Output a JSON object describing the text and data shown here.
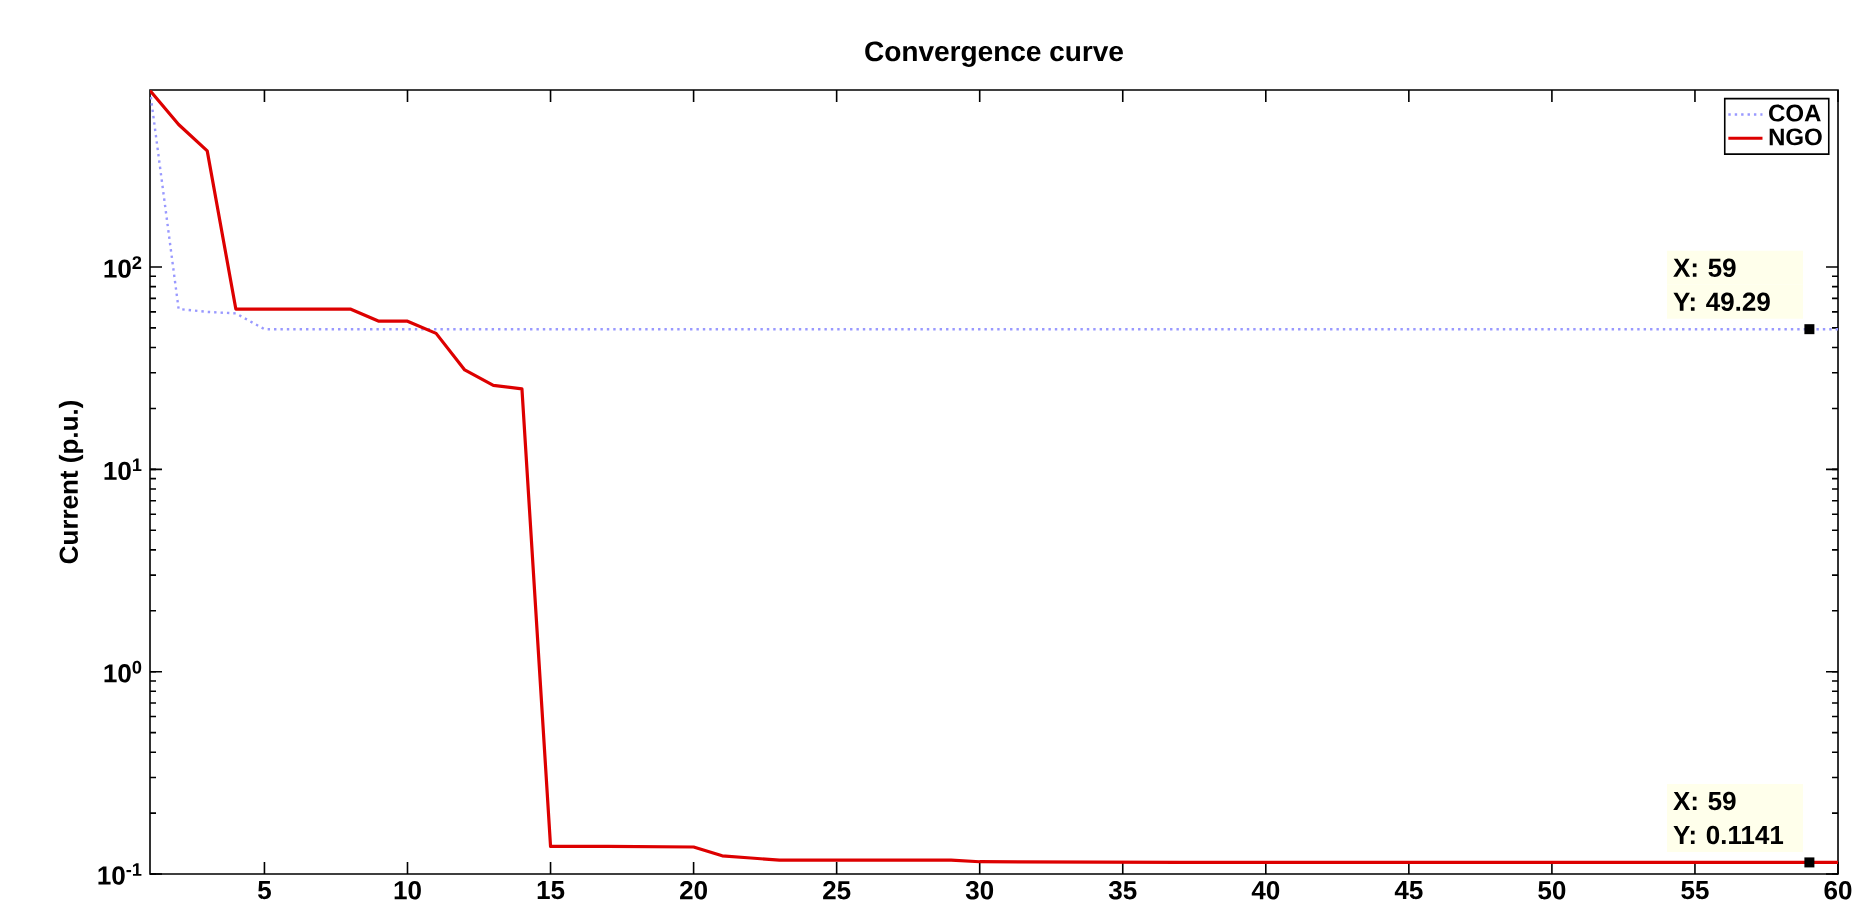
{
  "chart_data": {
    "type": "line",
    "title": "Convergence curve",
    "ylabel": "Current (p.u.)",
    "xlim": [
      1,
      60
    ],
    "xticks": [
      5,
      10,
      15,
      20,
      25,
      30,
      35,
      40,
      45,
      50,
      55,
      60
    ],
    "ylim": [
      0.1,
      750
    ],
    "log": "y",
    "yticks": [
      {
        "value": 0.1,
        "label": "10$^{-1}$"
      },
      {
        "value": 1,
        "label": "10$^{0}$"
      },
      {
        "value": 10,
        "label": "10$^{1}$"
      },
      {
        "value": 100,
        "label": "10$^{2}$"
      }
    ],
    "legend": "top right",
    "marker": "none",
    "grid": false,
    "series": [
      {
        "name": "COA",
        "color": "#9999ff",
        "line_style": "dotted",
        "x": [
          1,
          2,
          3,
          4,
          5,
          60
        ],
        "values": [
          745,
          62,
          60,
          59,
          49.29,
          49.29
        ]
      },
      {
        "name": "NGO",
        "color": "#dd0000",
        "line_style": "solid",
        "x": [
          1,
          2,
          3,
          4,
          8,
          9,
          10,
          11,
          12,
          13,
          14,
          15,
          17,
          20,
          21,
          22,
          23,
          29,
          30,
          37,
          59,
          60
        ],
        "values": [
          745,
          506,
          375,
          62,
          62,
          54,
          54,
          47,
          31,
          26,
          25,
          0.137,
          0.137,
          0.136,
          0.123,
          0.12,
          0.117,
          0.117,
          0.115,
          0.1141,
          0.1141,
          0.1141
        ]
      }
    ],
    "annotations": [
      "X: 59",
      {
        "text": "Y: 49.29",
        "x": 59,
        "y": 49.29
      },
      "X: 59",
      {
        "text": "Y: 0.1141",
        "x": 59,
        "y": 0.1141
      }
    ]
  }
}
